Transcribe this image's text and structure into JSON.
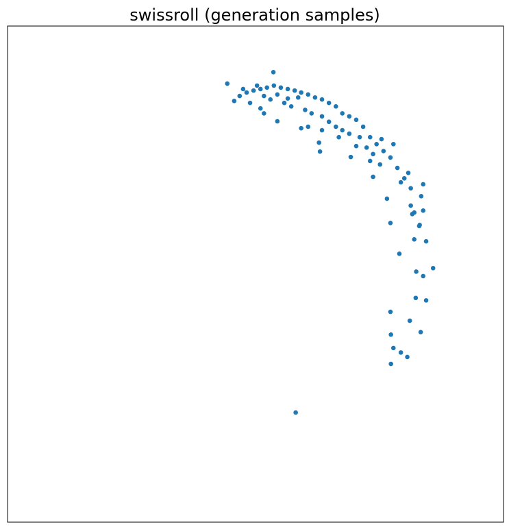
{
  "chart_data": {
    "type": "scatter",
    "title": "swissroll (generation samples)",
    "xlim": [
      0,
      100
    ],
    "ylim": [
      0,
      100
    ],
    "grid": false,
    "series": [
      {
        "color": "#1f77b4",
        "x": [
          44.3,
          53.6,
          45.7,
          46.8,
          48.2,
          49.6,
          51.0,
          52.3,
          53.7,
          55.1,
          56.5,
          57.9,
          59.2,
          60.6,
          62.0,
          63.4,
          64.8,
          66.2,
          67.5,
          68.9,
          70.3,
          71.7,
          73.1,
          74.4,
          75.8,
          77.2,
          78.6,
          80.0,
          81.3,
          83.8,
          81.3,
          82.0,
          83.8,
          83.0,
          82.0,
          84.4,
          79.0,
          85.8,
          82.4,
          83.8,
          77.2,
          76.5,
          82.3,
          84.4,
          77.2,
          81.1,
          83.3,
          77.3,
          77.8,
          79.3,
          80.6,
          77.3,
          58.1,
          62.8,
          63.0,
          59.2,
          54.4,
          51.7,
          51.0,
          69.2,
          73.7,
          80.8,
          77.8,
          75.4,
          70.3,
          66.8,
          48.9,
          53.0,
          55.8,
          57.2,
          60.0,
          61.3,
          63.4,
          64.8,
          66.2,
          67.5,
          68.9,
          71.0,
          72.4,
          73.7,
          75.1,
          73.1,
          79.3,
          81.6,
          83.1,
          83.4,
          60.6,
          63.4,
          56.5,
          51.7,
          54.4,
          58.6,
          50.3,
          47.5
        ],
        "values": [
          88.4,
          90.7,
          84.9,
          85.9,
          86.6,
          87.0,
          87.3,
          87.6,
          88.0,
          87.6,
          87.3,
          87.0,
          86.6,
          86.2,
          85.6,
          85.2,
          84.5,
          83.8,
          82.4,
          81.8,
          81.1,
          79.7,
          77.6,
          76.2,
          74.8,
          73.5,
          71.4,
          69.3,
          67.3,
          68.1,
          63.8,
          62.4,
          62.8,
          59.7,
          57.0,
          56.6,
          54.1,
          51.2,
          50.5,
          49.6,
          60.3,
          65.2,
          45.2,
          44.7,
          42.4,
          40.6,
          38.3,
          37.8,
          35.1,
          34.2,
          33.3,
          31.9,
          22.1,
          76.5,
          74.7,
          79.4,
          80.8,
          82.4,
          83.4,
          73.6,
          69.6,
          70.4,
          76.2,
          77.2,
          75.8,
          77.6,
          84.5,
          85.2,
          84.5,
          83.8,
          83.1,
          82.4,
          81.8,
          80.7,
          79.7,
          79.0,
          78.3,
          77.6,
          75.5,
          74.2,
          72.1,
          72.8,
          68.5,
          62.1,
          59.9,
          65.7,
          79.7,
          79.0,
          85.4,
          85.9,
          86.2,
          85.6,
          88.0,
          87.3
        ]
      }
    ]
  }
}
